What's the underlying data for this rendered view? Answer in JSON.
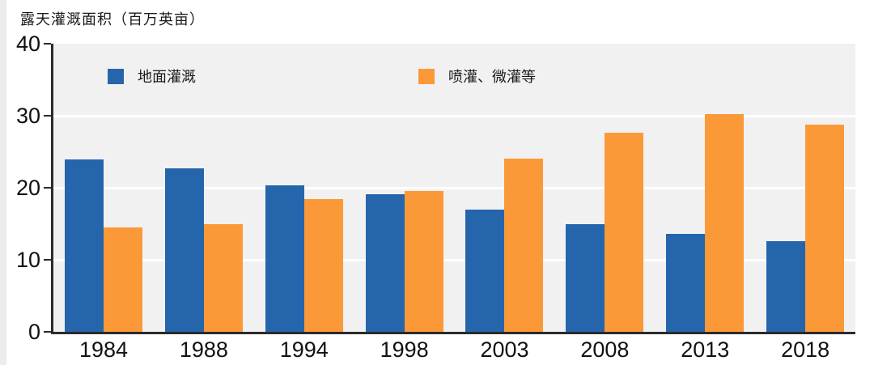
{
  "title": "露天灌溉面积（百万英亩）",
  "legend": {
    "items": [
      {
        "label": "地面灌溉",
        "color": "#2565AC"
      },
      {
        "label": "喷灌、微灌等",
        "color": "#FB9939"
      }
    ]
  },
  "chart_data": {
    "type": "bar",
    "title": "露天灌溉面积（百万英亩）",
    "xlabel": "",
    "ylabel": "露天灌溉面积（百万英亩）",
    "categories": [
      "1984",
      "1988",
      "1994",
      "1998",
      "2003",
      "2008",
      "2013",
      "2018"
    ],
    "series": [
      {
        "name": "地面灌溉",
        "color": "#2565AC",
        "values": [
          23.9,
          22.7,
          20.3,
          19.1,
          17.0,
          15.0,
          13.6,
          12.6
        ]
      },
      {
        "name": "喷灌、微灌等",
        "color": "#FB9939",
        "values": [
          14.5,
          15.0,
          18.4,
          19.6,
          24.1,
          27.6,
          30.2,
          28.8
        ]
      }
    ],
    "ylim": [
      0,
      40
    ],
    "yticks": [
      0,
      10,
      20,
      30,
      40
    ],
    "grid": true,
    "gridline_values": [
      10,
      20,
      30
    ],
    "legend_position": "top",
    "plot_background": "#F1F1F2",
    "grid_color": "#FFFFFF",
    "axis_color": "#2B2B2B"
  }
}
